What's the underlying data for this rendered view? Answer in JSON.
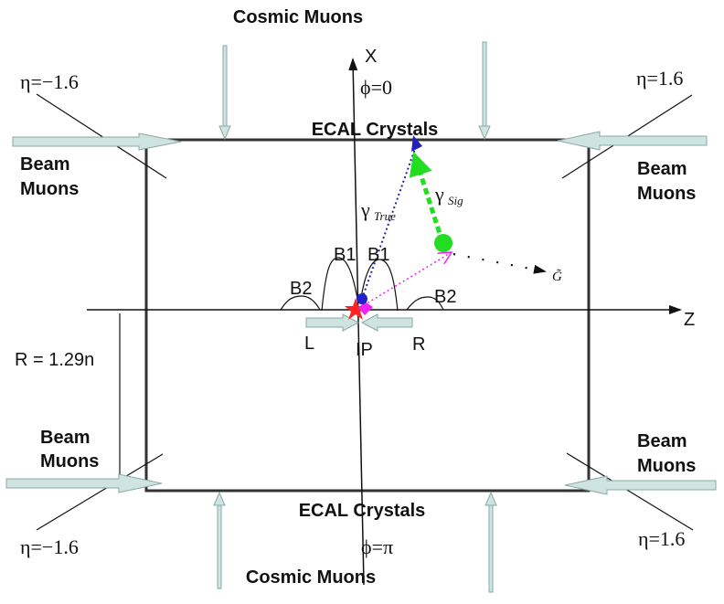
{
  "cosmic_muons_top": "Cosmic Muons",
  "cosmic_muons_bottom": "Cosmic Muons",
  "ecal_top": "ECAL Crystals",
  "ecal_bottom": "ECAL Crystals",
  "axis_x": "X",
  "axis_z": "Z",
  "phi_top": "ϕ=0",
  "phi_bottom": "ϕ=π",
  "eta_top_left": "η=−1.6",
  "eta_top_right": "η=1.6",
  "eta_bottom_left": "η=−1.6",
  "eta_bottom_right": "η=1.6",
  "beam_muons": {
    "top_left": [
      "Beam",
      "Muons"
    ],
    "top_right": [
      "Beam",
      "Muons"
    ],
    "bottom_left": [
      "Beam",
      "Muons"
    ],
    "bottom_right": [
      "Beam",
      "Muons"
    ]
  },
  "gamma_true": {
    "symbol": "γ",
    "sub": "True"
  },
  "gamma_sig": {
    "symbol": "γ",
    "sub": "Sig"
  },
  "gravitino": "G̃",
  "b1_left": "B1",
  "b1_right": "B1",
  "b2_left": "B2",
  "b2_right": "B2",
  "label_l": "L",
  "label_r": "R",
  "label_ip": "IP",
  "radius": "R = 1.29n",
  "colors": {
    "arrow_fill": "#cfe3e0",
    "arrow_stroke": "#8aa8a4",
    "box": "#333333",
    "gamma_true_line": "#2222aa",
    "gamma_sig_line": "#22dd22",
    "neutralino": "#22dd22",
    "pink_line": "#ee22ee",
    "ip_star": "#ff2222"
  }
}
